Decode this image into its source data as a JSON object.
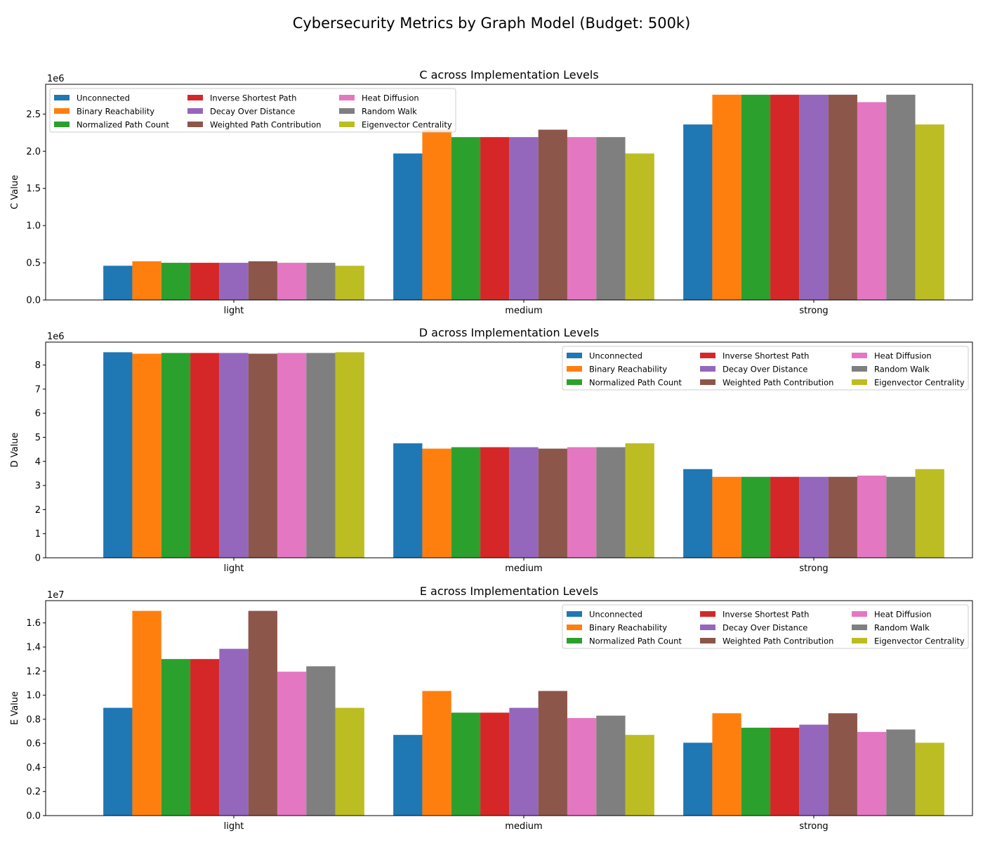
{
  "figure_title": "Cybersecurity Metrics by Graph Model (Budget: 500k)",
  "palette": {
    "Unconnected": "#1f77b4",
    "Binary Reachability": "#ff7f0e",
    "Normalized Path Count": "#2ca02c",
    "Inverse Shortest Path": "#d62728",
    "Decay Over Distance": "#9467bd",
    "Weighted Path Contribution": "#8c564b",
    "Heat Diffusion": "#e377c2",
    "Random Walk": "#7f7f7f",
    "Eigenvector Centrality": "#bcbd22"
  },
  "chart_data": [
    {
      "type": "bar",
      "title": "C across Implementation Levels",
      "xlabel": "",
      "ylabel": "C Value",
      "offset_label": "1e6",
      "scale": 1000000,
      "ylim": [
        0,
        2900000
      ],
      "yticks": [
        0,
        500000,
        1000000,
        1500000,
        2000000,
        2500000
      ],
      "ytick_labels": [
        "0.0",
        "0.5",
        "1.0",
        "1.5",
        "2.0",
        "2.5"
      ],
      "grid": false,
      "legend_position": "upper-left",
      "categories": [
        "light",
        "medium",
        "strong"
      ],
      "series": [
        {
          "name": "Unconnected",
          "values": [
            460000,
            1970000,
            2360000
          ]
        },
        {
          "name": "Binary Reachability",
          "values": [
            520000,
            2290000,
            2760000
          ]
        },
        {
          "name": "Normalized Path Count",
          "values": [
            500000,
            2190000,
            2760000
          ]
        },
        {
          "name": "Inverse Shortest Path",
          "values": [
            500000,
            2190000,
            2760000
          ]
        },
        {
          "name": "Decay Over Distance",
          "values": [
            500000,
            2190000,
            2760000
          ]
        },
        {
          "name": "Weighted Path Contribution",
          "values": [
            520000,
            2290000,
            2760000
          ]
        },
        {
          "name": "Heat Diffusion",
          "values": [
            500000,
            2190000,
            2660000
          ]
        },
        {
          "name": "Random Walk",
          "values": [
            500000,
            2190000,
            2760000
          ]
        },
        {
          "name": "Eigenvector Centrality",
          "values": [
            460000,
            1970000,
            2360000
          ]
        }
      ]
    },
    {
      "type": "bar",
      "title": "D across Implementation Levels",
      "xlabel": "",
      "ylabel": "D Value",
      "offset_label": "1e6",
      "scale": 1000000,
      "ylim": [
        0,
        8950000
      ],
      "yticks": [
        0,
        1000000,
        2000000,
        3000000,
        4000000,
        5000000,
        6000000,
        7000000,
        8000000
      ],
      "ytick_labels": [
        "0",
        "1",
        "2",
        "3",
        "4",
        "5",
        "6",
        "7",
        "8"
      ],
      "grid": false,
      "legend_position": "upper-right",
      "categories": [
        "light",
        "medium",
        "strong"
      ],
      "series": [
        {
          "name": "Unconnected",
          "values": [
            8530000,
            4750000,
            3680000
          ]
        },
        {
          "name": "Binary Reachability",
          "values": [
            8470000,
            4530000,
            3360000
          ]
        },
        {
          "name": "Normalized Path Count",
          "values": [
            8500000,
            4590000,
            3360000
          ]
        },
        {
          "name": "Inverse Shortest Path",
          "values": [
            8500000,
            4590000,
            3360000
          ]
        },
        {
          "name": "Decay Over Distance",
          "values": [
            8500000,
            4590000,
            3360000
          ]
        },
        {
          "name": "Weighted Path Contribution",
          "values": [
            8470000,
            4530000,
            3360000
          ]
        },
        {
          "name": "Heat Diffusion",
          "values": [
            8500000,
            4590000,
            3410000
          ]
        },
        {
          "name": "Random Walk",
          "values": [
            8500000,
            4590000,
            3360000
          ]
        },
        {
          "name": "Eigenvector Centrality",
          "values": [
            8530000,
            4750000,
            3680000
          ]
        }
      ]
    },
    {
      "type": "bar",
      "title": "E across Implementation Levels",
      "xlabel": "",
      "ylabel": "E Value",
      "offset_label": "1e7",
      "scale": 10000000,
      "ylim": [
        0,
        17850000
      ],
      "yticks": [
        0,
        2000000,
        4000000,
        6000000,
        8000000,
        10000000,
        12000000,
        14000000,
        16000000
      ],
      "ytick_labels": [
        "0.0",
        "0.2",
        "0.4",
        "0.6",
        "0.8",
        "1.0",
        "1.2",
        "1.4",
        "1.6"
      ],
      "grid": false,
      "legend_position": "upper-right",
      "categories": [
        "light",
        "medium",
        "strong"
      ],
      "series": [
        {
          "name": "Unconnected",
          "values": [
            8950000,
            6700000,
            6050000
          ]
        },
        {
          "name": "Binary Reachability",
          "values": [
            17000000,
            10350000,
            8500000
          ]
        },
        {
          "name": "Normalized Path Count",
          "values": [
            13000000,
            8550000,
            7300000
          ]
        },
        {
          "name": "Inverse Shortest Path",
          "values": [
            13000000,
            8550000,
            7300000
          ]
        },
        {
          "name": "Decay Over Distance",
          "values": [
            13850000,
            8950000,
            7550000
          ]
        },
        {
          "name": "Weighted Path Contribution",
          "values": [
            17000000,
            10350000,
            8500000
          ]
        },
        {
          "name": "Heat Diffusion",
          "values": [
            11950000,
            8100000,
            6950000
          ]
        },
        {
          "name": "Random Walk",
          "values": [
            12400000,
            8300000,
            7150000
          ]
        },
        {
          "name": "Eigenvector Centrality",
          "values": [
            8950000,
            6700000,
            6050000
          ]
        }
      ]
    }
  ]
}
